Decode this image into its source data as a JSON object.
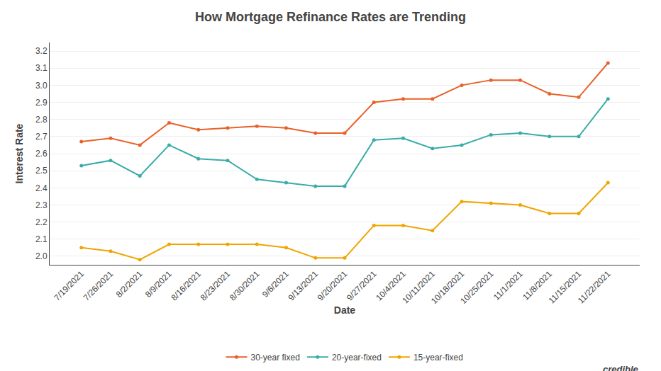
{
  "chart_data": {
    "type": "line",
    "title": "How Mortgage Refinance Rates are Trending",
    "xlabel": "Date",
    "ylabel": "Interest Rate",
    "categories": [
      "7/19/2021",
      "7/26/2021",
      "8/2/2021",
      "8/9/2021",
      "8/16/2021",
      "8/23/2021",
      "8/30/2021",
      "9/6/2021",
      "9/13/2021",
      "9/20/2021",
      "9/27/2021",
      "10/4/2021",
      "10/11/2021",
      "10/18/2021",
      "10/25/2021",
      "11/1/2021",
      "11/8/2021",
      "11/15/2021",
      "11/22/2021"
    ],
    "series": [
      {
        "name": "30-year fixed",
        "color": "#E8622A",
        "values": [
          2.67,
          2.69,
          2.65,
          2.78,
          2.74,
          2.75,
          2.76,
          2.75,
          2.72,
          2.72,
          2.9,
          2.92,
          2.92,
          3.0,
          3.03,
          3.03,
          2.95,
          2.93,
          3.13
        ]
      },
      {
        "name": "20-year-fixed",
        "color": "#3AACA8",
        "values": [
          2.53,
          2.56,
          2.47,
          2.65,
          2.57,
          2.56,
          2.45,
          2.43,
          2.41,
          2.41,
          2.68,
          2.69,
          2.63,
          2.65,
          2.71,
          2.72,
          2.7,
          2.7,
          2.92
        ]
      },
      {
        "name": "15-year-fixed",
        "color": "#F0A500",
        "values": [
          2.05,
          2.03,
          1.98,
          2.07,
          2.07,
          2.07,
          2.07,
          2.05,
          1.99,
          1.99,
          2.18,
          2.18,
          2.15,
          2.32,
          2.31,
          2.3,
          2.25,
          2.25,
          2.43
        ]
      }
    ],
    "ylim": [
      1.95,
      3.25
    ],
    "yticks": [
      {
        "value": 2.0,
        "label": "2.0"
      },
      2.1,
      2.2,
      2.3,
      2.4,
      2.5,
      2.6,
      2.7,
      2.8,
      2.9,
      {
        "value": 3.0,
        "label": "3.0"
      },
      3.1,
      3.2
    ],
    "grid": true,
    "legend": "bottom",
    "marker": "circle",
    "annotations": [
      "credible"
    ]
  }
}
